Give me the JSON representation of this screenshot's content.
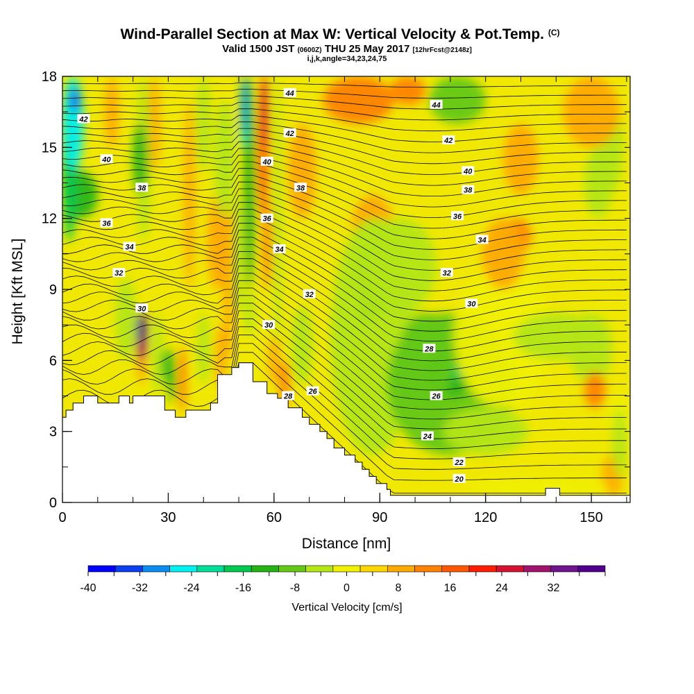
{
  "title": {
    "main": "Wind-Parallel Section at Max W: Vertical Velocity & Pot.Temp.",
    "main_unit": "(C)",
    "valid_prefix": "Valid 1500 JST",
    "valid_utc": "(0600Z)",
    "valid_date": "THU 25 May 2017",
    "forecast": "[12hrFcst@2148z]",
    "indices": "i,j,k,angle=34,23,24,75"
  },
  "chart_data": {
    "type": "heatmap",
    "xlabel": "Distance [nm]",
    "ylabel": "Height [Kft MSL]",
    "xlim": [
      0,
      161
    ],
    "ylim": [
      0,
      18
    ],
    "x_ticks": [
      0,
      30,
      60,
      90,
      120,
      150
    ],
    "y_ticks": [
      0,
      3,
      6,
      9,
      12,
      15,
      18
    ],
    "x_minor_step": 10,
    "y_minor_step": 1.5,
    "colorbar": {
      "label": "Vertical Velocity [cm/s]",
      "min": -40,
      "max": 36,
      "step": 4,
      "tick_values": [
        -40,
        -32,
        -24,
        -16,
        -8,
        0,
        8,
        16,
        24,
        32
      ],
      "tick_labels": [
        "-40",
        "-32",
        "-24",
        "-16",
        "-8",
        "0",
        "8",
        "16",
        "24",
        "32"
      ],
      "colors": [
        "#0000ff",
        "#0b40f0",
        "#0a8cf0",
        "#00f0f0",
        "#00dc96",
        "#00c850",
        "#26b414",
        "#64c814",
        "#b4e614",
        "#f0f000",
        "#ffd700",
        "#ffaa00",
        "#ff8200",
        "#ff5a00",
        "#ff1e00",
        "#d21432",
        "#a0146e",
        "#6e148c",
        "#50008c"
      ]
    },
    "terrain_kft": [
      [
        0,
        3.6
      ],
      [
        1,
        3.6
      ],
      [
        1,
        3.9
      ],
      [
        3,
        3.9
      ],
      [
        3,
        4.2
      ],
      [
        6,
        4.2
      ],
      [
        6,
        4.5
      ],
      [
        10,
        4.5
      ],
      [
        10,
        4.2
      ],
      [
        16,
        4.2
      ],
      [
        16,
        4.5
      ],
      [
        19,
        4.5
      ],
      [
        19,
        4.2
      ],
      [
        20,
        4.2
      ],
      [
        20,
        4.5
      ],
      [
        29,
        4.5
      ],
      [
        29,
        3.9
      ],
      [
        32,
        3.9
      ],
      [
        32,
        3.6
      ],
      [
        35,
        3.6
      ],
      [
        35,
        3.9
      ],
      [
        42,
        3.9
      ],
      [
        42,
        4.2
      ],
      [
        44,
        4.2
      ],
      [
        44,
        5.4
      ],
      [
        48,
        5.4
      ],
      [
        48,
        5.7
      ],
      [
        50,
        5.7
      ],
      [
        50,
        5.9
      ],
      [
        54,
        5.9
      ],
      [
        54,
        5.1
      ],
      [
        58,
        5.1
      ],
      [
        58,
        4.6
      ],
      [
        61,
        4.6
      ],
      [
        61,
        4.4
      ],
      [
        64,
        4.4
      ],
      [
        64,
        4.0
      ],
      [
        68,
        4.0
      ],
      [
        68,
        3.6
      ],
      [
        70,
        3.6
      ],
      [
        70,
        3.3
      ],
      [
        73,
        3.3
      ],
      [
        73,
        3.0
      ],
      [
        75,
        3.0
      ],
      [
        75,
        2.7
      ],
      [
        77,
        2.7
      ],
      [
        77,
        2.3
      ],
      [
        80,
        2.3
      ],
      [
        80,
        2.0
      ],
      [
        83,
        2.0
      ],
      [
        83,
        1.7
      ],
      [
        85,
        1.7
      ],
      [
        85,
        1.4
      ],
      [
        87,
        1.4
      ],
      [
        87,
        1.1
      ],
      [
        89,
        1.1
      ],
      [
        89,
        0.8
      ],
      [
        92,
        0.8
      ],
      [
        92,
        0.55
      ],
      [
        93,
        0.55
      ],
      [
        93,
        0.3
      ],
      [
        137,
        0.3
      ],
      [
        137,
        0.6
      ],
      [
        141,
        0.6
      ],
      [
        141,
        0.3
      ],
      [
        161,
        0.3
      ]
    ],
    "theta_labels": [
      {
        "text": "42",
        "x": 6,
        "y": 16.2
      },
      {
        "text": "40",
        "x": 12.5,
        "y": 14.5
      },
      {
        "text": "38",
        "x": 22.5,
        "y": 13.3
      },
      {
        "text": "36",
        "x": 12.5,
        "y": 11.8
      },
      {
        "text": "34",
        "x": 19,
        "y": 10.8
      },
      {
        "text": "32",
        "x": 16,
        "y": 9.7
      },
      {
        "text": "30",
        "x": 22.5,
        "y": 8.2
      },
      {
        "text": "44",
        "x": 64.5,
        "y": 17.3
      },
      {
        "text": "42",
        "x": 64.5,
        "y": 15.6
      },
      {
        "text": "40",
        "x": 58,
        "y": 14.4
      },
      {
        "text": "38",
        "x": 67.5,
        "y": 13.3
      },
      {
        "text": "36",
        "x": 58,
        "y": 12.0
      },
      {
        "text": "34",
        "x": 61.5,
        "y": 10.7
      },
      {
        "text": "32",
        "x": 70,
        "y": 8.8
      },
      {
        "text": "30",
        "x": 58.5,
        "y": 7.5
      },
      {
        "text": "28",
        "x": 64,
        "y": 4.5
      },
      {
        "text": "26",
        "x": 71,
        "y": 4.7
      },
      {
        "text": "44",
        "x": 106,
        "y": 16.8
      },
      {
        "text": "42",
        "x": 109.5,
        "y": 15.3
      },
      {
        "text": "40",
        "x": 115,
        "y": 14.0
      },
      {
        "text": "38",
        "x": 115,
        "y": 13.2
      },
      {
        "text": "36",
        "x": 112,
        "y": 12.1
      },
      {
        "text": "34",
        "x": 119,
        "y": 11.1
      },
      {
        "text": "32",
        "x": 109,
        "y": 9.7
      },
      {
        "text": "30",
        "x": 116,
        "y": 8.4
      },
      {
        "text": "28",
        "x": 104,
        "y": 6.5
      },
      {
        "text": "26",
        "x": 106,
        "y": 4.5
      },
      {
        "text": "24",
        "x": 103.5,
        "y": 2.8
      },
      {
        "text": "22",
        "x": 112.5,
        "y": 1.7
      },
      {
        "text": "20",
        "x": 112.5,
        "y": 1.0
      }
    ]
  }
}
